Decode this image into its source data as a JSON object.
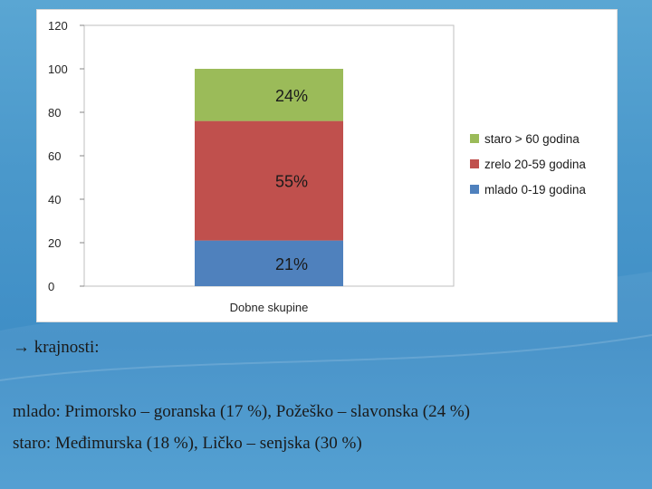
{
  "chart_data": {
    "type": "bar",
    "stacked": true,
    "categories": [
      "Dobne skupine"
    ],
    "series": [
      {
        "name": "mlado 0-19 godina",
        "values": [
          21
        ],
        "label": "21%",
        "color": "#4f81bd"
      },
      {
        "name": "zrelo 20-59 godina",
        "values": [
          55
        ],
        "label": "55%",
        "color": "#c0504d"
      },
      {
        "name": "staro > 60 godina",
        "values": [
          24
        ],
        "label": "24%",
        "color": "#9bbb59"
      }
    ],
    "xlabel": "Dobne skupine",
    "ylabel": "",
    "ylim": [
      0,
      120
    ],
    "yticks": [
      0,
      20,
      40,
      60,
      80,
      100,
      120
    ],
    "grid": false,
    "legend_position": "right"
  },
  "slide": {
    "bullet": "krajnosti:",
    "line1": "mlado: Primorsko – goranska (17 %), Požeško – slavonska (24 %)",
    "line2": "staro: Međimurska (18 %), Ličko – senjska (30 %)"
  }
}
